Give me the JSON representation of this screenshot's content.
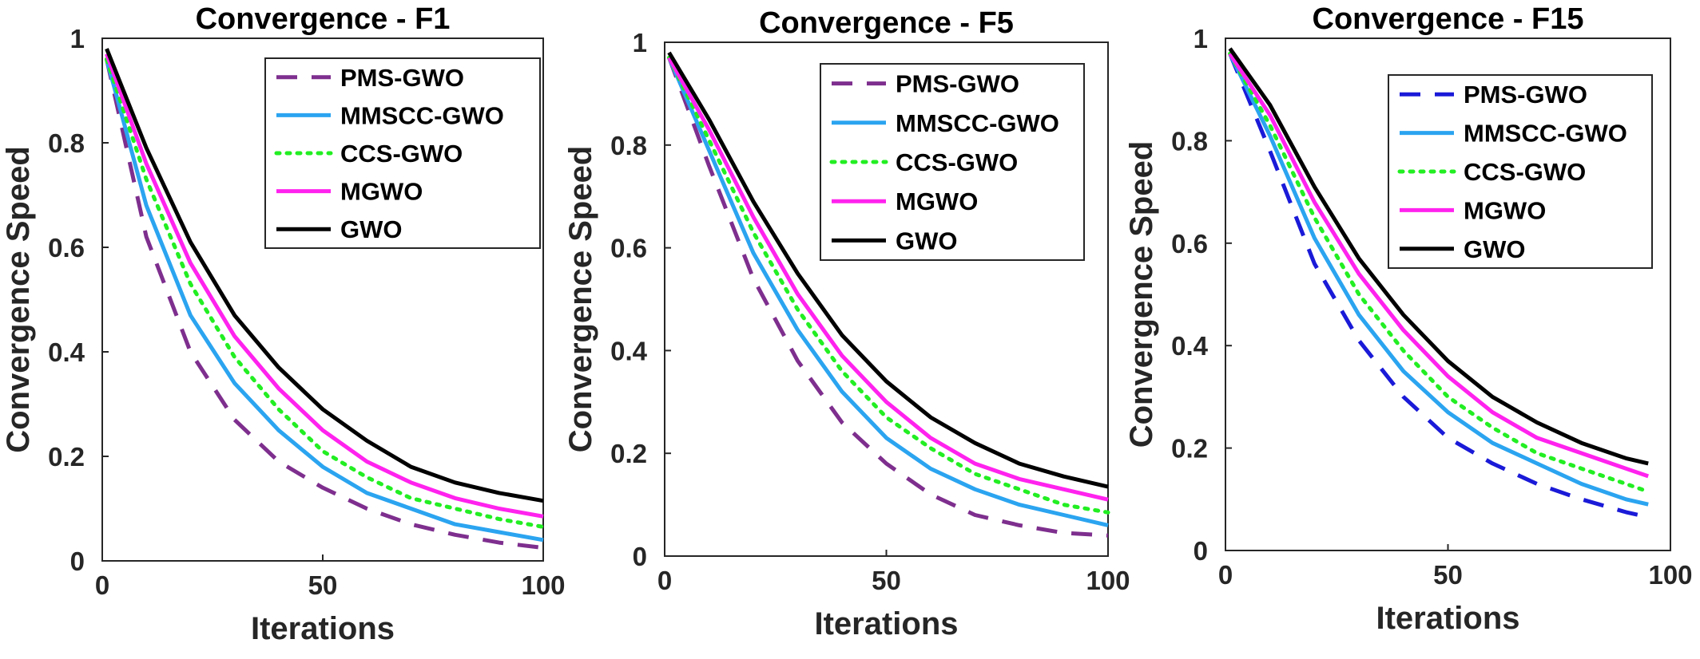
{
  "chart_data": [
    {
      "type": "line",
      "title": "Convergence - F1",
      "xlabel": "Iterations",
      "ylabel": "Convergence Speed",
      "xlim": [
        0,
        100
      ],
      "ylim": [
        0,
        1
      ],
      "xticks": [
        "0",
        "50",
        "100"
      ],
      "yticks": [
        "0",
        "0.2",
        "0.4",
        "0.6",
        "0.8",
        "1"
      ],
      "legend_position": "top-right",
      "x": [
        1,
        10,
        20,
        30,
        40,
        50,
        60,
        70,
        80,
        90,
        100
      ],
      "series": [
        {
          "name": "PMS-GWO",
          "style": "dashed",
          "color": "#7e2f8e",
          "values": [
            0.96,
            0.62,
            0.4,
            0.27,
            0.19,
            0.14,
            0.1,
            0.07,
            0.05,
            0.035,
            0.025
          ]
        },
        {
          "name": "MMSCC-GWO",
          "style": "solid",
          "color": "#2ba4f0",
          "values": [
            0.96,
            0.68,
            0.47,
            0.34,
            0.25,
            0.18,
            0.13,
            0.1,
            0.07,
            0.055,
            0.04
          ]
        },
        {
          "name": "CCS-GWO",
          "style": "dotted",
          "color": "#22ee22",
          "values": [
            0.96,
            0.73,
            0.53,
            0.39,
            0.29,
            0.21,
            0.16,
            0.12,
            0.1,
            0.08,
            0.065
          ]
        },
        {
          "name": "MGWO",
          "style": "solid",
          "color": "#ff22ee",
          "values": [
            0.97,
            0.76,
            0.57,
            0.43,
            0.33,
            0.25,
            0.19,
            0.15,
            0.12,
            0.1,
            0.085
          ]
        },
        {
          "name": "GWO",
          "style": "solid",
          "color": "#000000",
          "values": [
            0.98,
            0.79,
            0.61,
            0.47,
            0.37,
            0.29,
            0.23,
            0.18,
            0.15,
            0.13,
            0.115
          ]
        }
      ]
    },
    {
      "type": "line",
      "title": "Convergence - F5",
      "xlabel": "Iterations",
      "ylabel": "Convergence Speed",
      "xlim": [
        0,
        100
      ],
      "ylim": [
        0,
        1
      ],
      "xticks": [
        "0",
        "50",
        "100"
      ],
      "yticks": [
        "0",
        "0.2",
        "0.4",
        "0.6",
        "0.8",
        "1"
      ],
      "legend_position": "top-right",
      "x": [
        1,
        10,
        20,
        30,
        40,
        50,
        60,
        70,
        80,
        90,
        100
      ],
      "series": [
        {
          "name": "PMS-GWO",
          "style": "dashed",
          "color": "#7e2f8e",
          "values": [
            0.97,
            0.76,
            0.54,
            0.38,
            0.26,
            0.18,
            0.12,
            0.08,
            0.06,
            0.045,
            0.04
          ]
        },
        {
          "name": "MMSCC-GWO",
          "style": "solid",
          "color": "#2ba4f0",
          "values": [
            0.97,
            0.79,
            0.59,
            0.44,
            0.32,
            0.23,
            0.17,
            0.13,
            0.1,
            0.08,
            0.06
          ]
        },
        {
          "name": "CCS-GWO",
          "style": "dotted",
          "color": "#22ee22",
          "values": [
            0.97,
            0.81,
            0.63,
            0.48,
            0.36,
            0.27,
            0.21,
            0.16,
            0.13,
            0.1,
            0.085
          ]
        },
        {
          "name": "MGWO",
          "style": "solid",
          "color": "#ff22ee",
          "values": [
            0.97,
            0.83,
            0.66,
            0.51,
            0.39,
            0.3,
            0.23,
            0.18,
            0.15,
            0.13,
            0.11
          ]
        },
        {
          "name": "GWO",
          "style": "solid",
          "color": "#000000",
          "values": [
            0.98,
            0.85,
            0.69,
            0.55,
            0.43,
            0.34,
            0.27,
            0.22,
            0.18,
            0.155,
            0.135
          ]
        }
      ]
    },
    {
      "type": "line",
      "title": "Convergence - F15",
      "xlabel": "Iterations",
      "ylabel": "Convergence Speed",
      "xlim": [
        0,
        100
      ],
      "ylim": [
        0,
        1
      ],
      "xticks": [
        "0",
        "50",
        "100"
      ],
      "yticks": [
        "0",
        "0.2",
        "0.4",
        "0.6",
        "0.8",
        "1"
      ],
      "legend_position": "top-right",
      "x": [
        1,
        10,
        20,
        30,
        40,
        50,
        60,
        70,
        80,
        90,
        95
      ],
      "series": [
        {
          "name": "PMS-GWO",
          "style": "dashed",
          "color": "#1a1ad8",
          "values": [
            0.97,
            0.78,
            0.56,
            0.41,
            0.3,
            0.22,
            0.17,
            0.13,
            0.1,
            0.075,
            0.065
          ]
        },
        {
          "name": "MMSCC-GWO",
          "style": "solid",
          "color": "#2ba4f0",
          "values": [
            0.97,
            0.81,
            0.61,
            0.46,
            0.35,
            0.27,
            0.21,
            0.17,
            0.13,
            0.1,
            0.09
          ]
        },
        {
          "name": "CCS-GWO",
          "style": "dotted",
          "color": "#22ee22",
          "values": [
            0.97,
            0.83,
            0.65,
            0.5,
            0.39,
            0.3,
            0.24,
            0.19,
            0.16,
            0.13,
            0.115
          ]
        },
        {
          "name": "MGWO",
          "style": "solid",
          "color": "#ff22ee",
          "values": [
            0.97,
            0.85,
            0.68,
            0.54,
            0.43,
            0.34,
            0.27,
            0.22,
            0.19,
            0.16,
            0.145
          ]
        },
        {
          "name": "GWO",
          "style": "solid",
          "color": "#000000",
          "values": [
            0.98,
            0.87,
            0.71,
            0.57,
            0.46,
            0.37,
            0.3,
            0.25,
            0.21,
            0.18,
            0.17
          ]
        }
      ]
    }
  ]
}
